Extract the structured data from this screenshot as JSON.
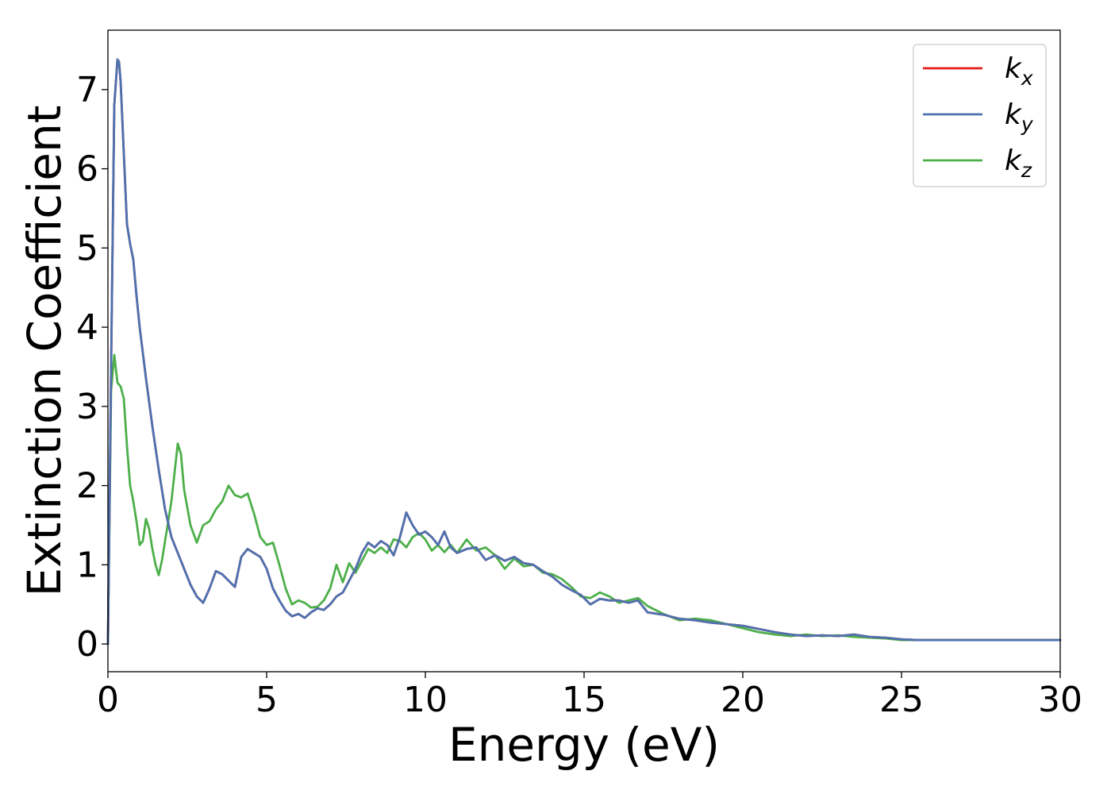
{
  "chart_data": {
    "type": "line",
    "xlabel": "Energy (eV)",
    "ylabel": "Extinction Coefficient",
    "xlim": [
      0,
      30
    ],
    "ylim": [
      -0.35,
      7.75
    ],
    "xticks": [
      "0",
      "5",
      "10",
      "15",
      "20",
      "25",
      "30"
    ],
    "yticks": [
      "0",
      "1",
      "2",
      "3",
      "4",
      "5",
      "6",
      "7"
    ],
    "grid": false,
    "legend_position": "top-right",
    "series": [
      {
        "name": "k",
        "subscript": "x",
        "color": "#e41a1c",
        "x": [
          0,
          0.1,
          0.2,
          0.3,
          0.35,
          0.4,
          0.5,
          0.6,
          0.7,
          0.8,
          0.9,
          1.0,
          1.2,
          1.4,
          1.6,
          1.8,
          2.0,
          2.2,
          2.4,
          2.6,
          2.8,
          3.0,
          3.2,
          3.4,
          3.6,
          3.8,
          4.0,
          4.2,
          4.4,
          4.6,
          4.8,
          5.0,
          5.2,
          5.4,
          5.6,
          5.8,
          6.0,
          6.2,
          6.4,
          6.6,
          6.8,
          7.0,
          7.2,
          7.4,
          7.6,
          7.8,
          8.0,
          8.2,
          8.4,
          8.6,
          8.8,
          9.0,
          9.2,
          9.4,
          9.6,
          9.8,
          10.0,
          10.2,
          10.4,
          10.6,
          10.8,
          11.0,
          11.3,
          11.6,
          11.9,
          12.2,
          12.5,
          12.8,
          13.1,
          13.4,
          13.7,
          14.0,
          14.3,
          14.6,
          14.9,
          15.2,
          15.5,
          15.8,
          16.1,
          16.4,
          16.7,
          17.0,
          17.5,
          18.0,
          18.5,
          19.0,
          19.5,
          20.0,
          20.5,
          21.0,
          21.5,
          22.0,
          22.5,
          23.0,
          23.5,
          24.0,
          24.5,
          25.0,
          25.5,
          26.0,
          27.0,
          28.0,
          29.0,
          30.0
        ],
        "y": [
          0.0,
          3.5,
          6.8,
          7.38,
          7.35,
          7.1,
          6.2,
          5.3,
          5.05,
          4.85,
          4.4,
          4.0,
          3.35,
          2.75,
          2.2,
          1.7,
          1.35,
          1.15,
          0.95,
          0.75,
          0.6,
          0.52,
          0.7,
          0.92,
          0.88,
          0.8,
          0.72,
          1.1,
          1.2,
          1.15,
          1.1,
          0.95,
          0.7,
          0.55,
          0.42,
          0.35,
          0.38,
          0.33,
          0.4,
          0.45,
          0.43,
          0.5,
          0.6,
          0.65,
          0.8,
          0.95,
          1.15,
          1.28,
          1.22,
          1.3,
          1.25,
          1.12,
          1.35,
          1.66,
          1.5,
          1.38,
          1.42,
          1.35,
          1.25,
          1.42,
          1.22,
          1.15,
          1.2,
          1.22,
          1.06,
          1.12,
          1.05,
          1.1,
          1.02,
          1.0,
          0.92,
          0.85,
          0.75,
          0.68,
          0.62,
          0.5,
          0.57,
          0.55,
          0.55,
          0.52,
          0.55,
          0.4,
          0.37,
          0.32,
          0.3,
          0.27,
          0.25,
          0.23,
          0.19,
          0.15,
          0.12,
          0.1,
          0.11,
          0.1,
          0.12,
          0.09,
          0.08,
          0.06,
          0.05,
          0.05,
          0.05,
          0.05,
          0.05,
          0.05
        ]
      },
      {
        "name": "k",
        "subscript": "y",
        "color": "#4c72b0",
        "x": [
          0,
          0.1,
          0.2,
          0.3,
          0.35,
          0.4,
          0.5,
          0.6,
          0.7,
          0.8,
          0.9,
          1.0,
          1.2,
          1.4,
          1.6,
          1.8,
          2.0,
          2.2,
          2.4,
          2.6,
          2.8,
          3.0,
          3.2,
          3.4,
          3.6,
          3.8,
          4.0,
          4.2,
          4.4,
          4.6,
          4.8,
          5.0,
          5.2,
          5.4,
          5.6,
          5.8,
          6.0,
          6.2,
          6.4,
          6.6,
          6.8,
          7.0,
          7.2,
          7.4,
          7.6,
          7.8,
          8.0,
          8.2,
          8.4,
          8.6,
          8.8,
          9.0,
          9.2,
          9.4,
          9.6,
          9.8,
          10.0,
          10.2,
          10.4,
          10.6,
          10.8,
          11.0,
          11.3,
          11.6,
          11.9,
          12.2,
          12.5,
          12.8,
          13.1,
          13.4,
          13.7,
          14.0,
          14.3,
          14.6,
          14.9,
          15.2,
          15.5,
          15.8,
          16.1,
          16.4,
          16.7,
          17.0,
          17.5,
          18.0,
          18.5,
          19.0,
          19.5,
          20.0,
          20.5,
          21.0,
          21.5,
          22.0,
          22.5,
          23.0,
          23.5,
          24.0,
          24.5,
          25.0,
          25.5,
          26.0,
          27.0,
          28.0,
          29.0,
          30.0
        ],
        "y": [
          0.0,
          3.5,
          6.8,
          7.38,
          7.35,
          7.1,
          6.2,
          5.3,
          5.05,
          4.85,
          4.4,
          4.0,
          3.35,
          2.75,
          2.2,
          1.7,
          1.35,
          1.15,
          0.95,
          0.75,
          0.6,
          0.52,
          0.7,
          0.92,
          0.88,
          0.8,
          0.72,
          1.1,
          1.2,
          1.15,
          1.1,
          0.95,
          0.7,
          0.55,
          0.42,
          0.35,
          0.38,
          0.33,
          0.4,
          0.45,
          0.43,
          0.5,
          0.6,
          0.65,
          0.8,
          0.95,
          1.15,
          1.28,
          1.22,
          1.3,
          1.25,
          1.12,
          1.35,
          1.66,
          1.5,
          1.38,
          1.42,
          1.35,
          1.25,
          1.42,
          1.22,
          1.15,
          1.2,
          1.22,
          1.06,
          1.12,
          1.05,
          1.1,
          1.02,
          1.0,
          0.92,
          0.85,
          0.75,
          0.68,
          0.62,
          0.5,
          0.57,
          0.55,
          0.55,
          0.52,
          0.55,
          0.4,
          0.37,
          0.32,
          0.3,
          0.27,
          0.25,
          0.23,
          0.19,
          0.15,
          0.12,
          0.1,
          0.11,
          0.1,
          0.12,
          0.09,
          0.08,
          0.06,
          0.05,
          0.05,
          0.05,
          0.05,
          0.05,
          0.05
        ]
      },
      {
        "name": "k",
        "subscript": "z",
        "color": "#4daf4a",
        "x": [
          0,
          0.1,
          0.2,
          0.3,
          0.4,
          0.5,
          0.6,
          0.7,
          0.8,
          0.9,
          1.0,
          1.1,
          1.2,
          1.3,
          1.4,
          1.5,
          1.6,
          1.7,
          1.8,
          2.0,
          2.2,
          2.3,
          2.4,
          2.6,
          2.8,
          3.0,
          3.2,
          3.4,
          3.6,
          3.8,
          4.0,
          4.2,
          4.4,
          4.6,
          4.8,
          5.0,
          5.2,
          5.4,
          5.6,
          5.8,
          6.0,
          6.2,
          6.4,
          6.6,
          6.8,
          7.0,
          7.2,
          7.4,
          7.6,
          7.8,
          8.0,
          8.2,
          8.4,
          8.6,
          8.8,
          9.0,
          9.2,
          9.4,
          9.6,
          9.8,
          10.0,
          10.2,
          10.4,
          10.6,
          10.8,
          11.0,
          11.3,
          11.6,
          11.9,
          12.2,
          12.5,
          12.8,
          13.1,
          13.4,
          13.7,
          14.0,
          14.3,
          14.6,
          14.9,
          15.2,
          15.5,
          15.8,
          16.1,
          16.4,
          16.7,
          17.0,
          17.5,
          18.0,
          18.5,
          19.0,
          19.5,
          20.0,
          20.5,
          21.0,
          21.5,
          22.0,
          22.5,
          23.0,
          23.5,
          24.0,
          24.5,
          25.0,
          25.5,
          26.0,
          27.0,
          28.0,
          29.0,
          30.0
        ],
        "y": [
          0.0,
          3.2,
          3.65,
          3.3,
          3.25,
          3.1,
          2.5,
          2.0,
          1.8,
          1.55,
          1.25,
          1.3,
          1.58,
          1.45,
          1.2,
          1.0,
          0.87,
          1.05,
          1.3,
          1.8,
          2.53,
          2.4,
          1.95,
          1.5,
          1.28,
          1.5,
          1.55,
          1.7,
          1.8,
          2.0,
          1.88,
          1.85,
          1.9,
          1.65,
          1.35,
          1.25,
          1.28,
          1.0,
          0.7,
          0.5,
          0.55,
          0.52,
          0.46,
          0.47,
          0.55,
          0.7,
          1.0,
          0.78,
          1.02,
          0.9,
          1.05,
          1.2,
          1.15,
          1.22,
          1.15,
          1.32,
          1.3,
          1.22,
          1.35,
          1.4,
          1.32,
          1.18,
          1.25,
          1.16,
          1.25,
          1.15,
          1.32,
          1.18,
          1.22,
          1.12,
          0.95,
          1.08,
          0.98,
          1.0,
          0.9,
          0.88,
          0.82,
          0.72,
          0.6,
          0.58,
          0.65,
          0.6,
          0.52,
          0.55,
          0.58,
          0.48,
          0.38,
          0.3,
          0.32,
          0.3,
          0.25,
          0.2,
          0.15,
          0.12,
          0.1,
          0.12,
          0.1,
          0.11,
          0.09,
          0.08,
          0.07,
          0.05,
          0.05,
          0.05,
          0.05,
          0.05,
          0.05,
          0.05
        ]
      }
    ]
  }
}
